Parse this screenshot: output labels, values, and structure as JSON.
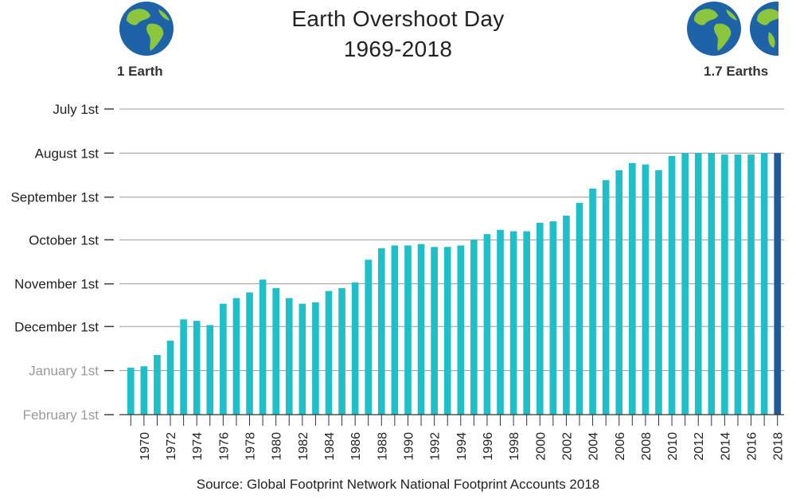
{
  "header": {
    "title_line1": "Earth Overshoot Day",
    "title_line2": "1969-2018",
    "left_label": "1 Earth",
    "right_label": "1.7 Earths",
    "globe_icon": "earth-globe-icon",
    "colors": {
      "ocean": "#1e63a8",
      "land": "#8cc63f"
    }
  },
  "footer": {
    "source": "Source: Global Footprint Network National Footprint Accounts 2018"
  },
  "chart_data": {
    "type": "bar",
    "title": "Earth Overshoot Day 1969-2018",
    "xlabel": "",
    "ylabel": "",
    "y_axis": {
      "unit": "date",
      "ticks": [
        "July 1st",
        "August 1st",
        "September 1st",
        "October 1st",
        "November 1st",
        "December 1st",
        "January 1st",
        "February 1st"
      ],
      "tick_colors": [
        "#222222",
        "#222222",
        "#222222",
        "#222222",
        "#222222",
        "#222222",
        "#999999",
        "#999999"
      ],
      "top": "July 1st",
      "bottom": "February 1st",
      "direction": "earlier dates higher"
    },
    "x_tick_labels": [
      "1970",
      "1972",
      "1974",
      "1976",
      "1978",
      "1980",
      "1982",
      "1984",
      "1986",
      "1988",
      "1990",
      "1992",
      "1994",
      "1996",
      "1998",
      "2000",
      "2002",
      "2004",
      "2006",
      "2008",
      "2010",
      "2012",
      "2014",
      "2016",
      "2018"
    ],
    "grid": true,
    "colors": {
      "bar": "#1ebfc9",
      "highlight": "#1f5a9a",
      "grid": "#999999"
    },
    "categories": [
      1969,
      1970,
      1971,
      1972,
      1973,
      1974,
      1975,
      1976,
      1977,
      1978,
      1979,
      1980,
      1981,
      1982,
      1983,
      1984,
      1985,
      1986,
      1987,
      1988,
      1989,
      1990,
      1991,
      1992,
      1993,
      1994,
      1995,
      1996,
      1997,
      1998,
      1999,
      2000,
      2001,
      2002,
      2003,
      2004,
      2005,
      2006,
      2007,
      2008,
      2009,
      2010,
      2011,
      2012,
      2013,
      2014,
      2015,
      2016,
      2017,
      2018
    ],
    "values": [
      "Dec 30",
      "Dec 29",
      "Dec 21",
      "Dec 11",
      "Nov 26",
      "Nov 27",
      "Nov 30",
      "Nov 15",
      "Nov 11",
      "Nov 7",
      "Oct 29",
      "Nov 4",
      "Nov 11",
      "Nov 15",
      "Nov 14",
      "Nov 6",
      "Nov 4",
      "Oct 31",
      "Oct 15",
      "Oct 7",
      "Oct 5",
      "Oct 5",
      "Oct 4",
      "Oct 6",
      "Oct 6",
      "Oct 5",
      "Oct 1",
      "Sep 27",
      "Sep 24",
      "Sep 25",
      "Sep 25",
      "Sep 19",
      "Sep 18",
      "Sep 14",
      "Sep 5",
      "Aug 26",
      "Aug 20",
      "Aug 13",
      "Aug 8",
      "Aug 9",
      "Aug 13",
      "Aug 3",
      "Aug 1",
      "Aug 1",
      "Aug 1",
      "Aug 2",
      "Aug 2",
      "Aug 2",
      "Aug 1",
      "Aug 1"
    ],
    "highlight_category": 2018
  }
}
